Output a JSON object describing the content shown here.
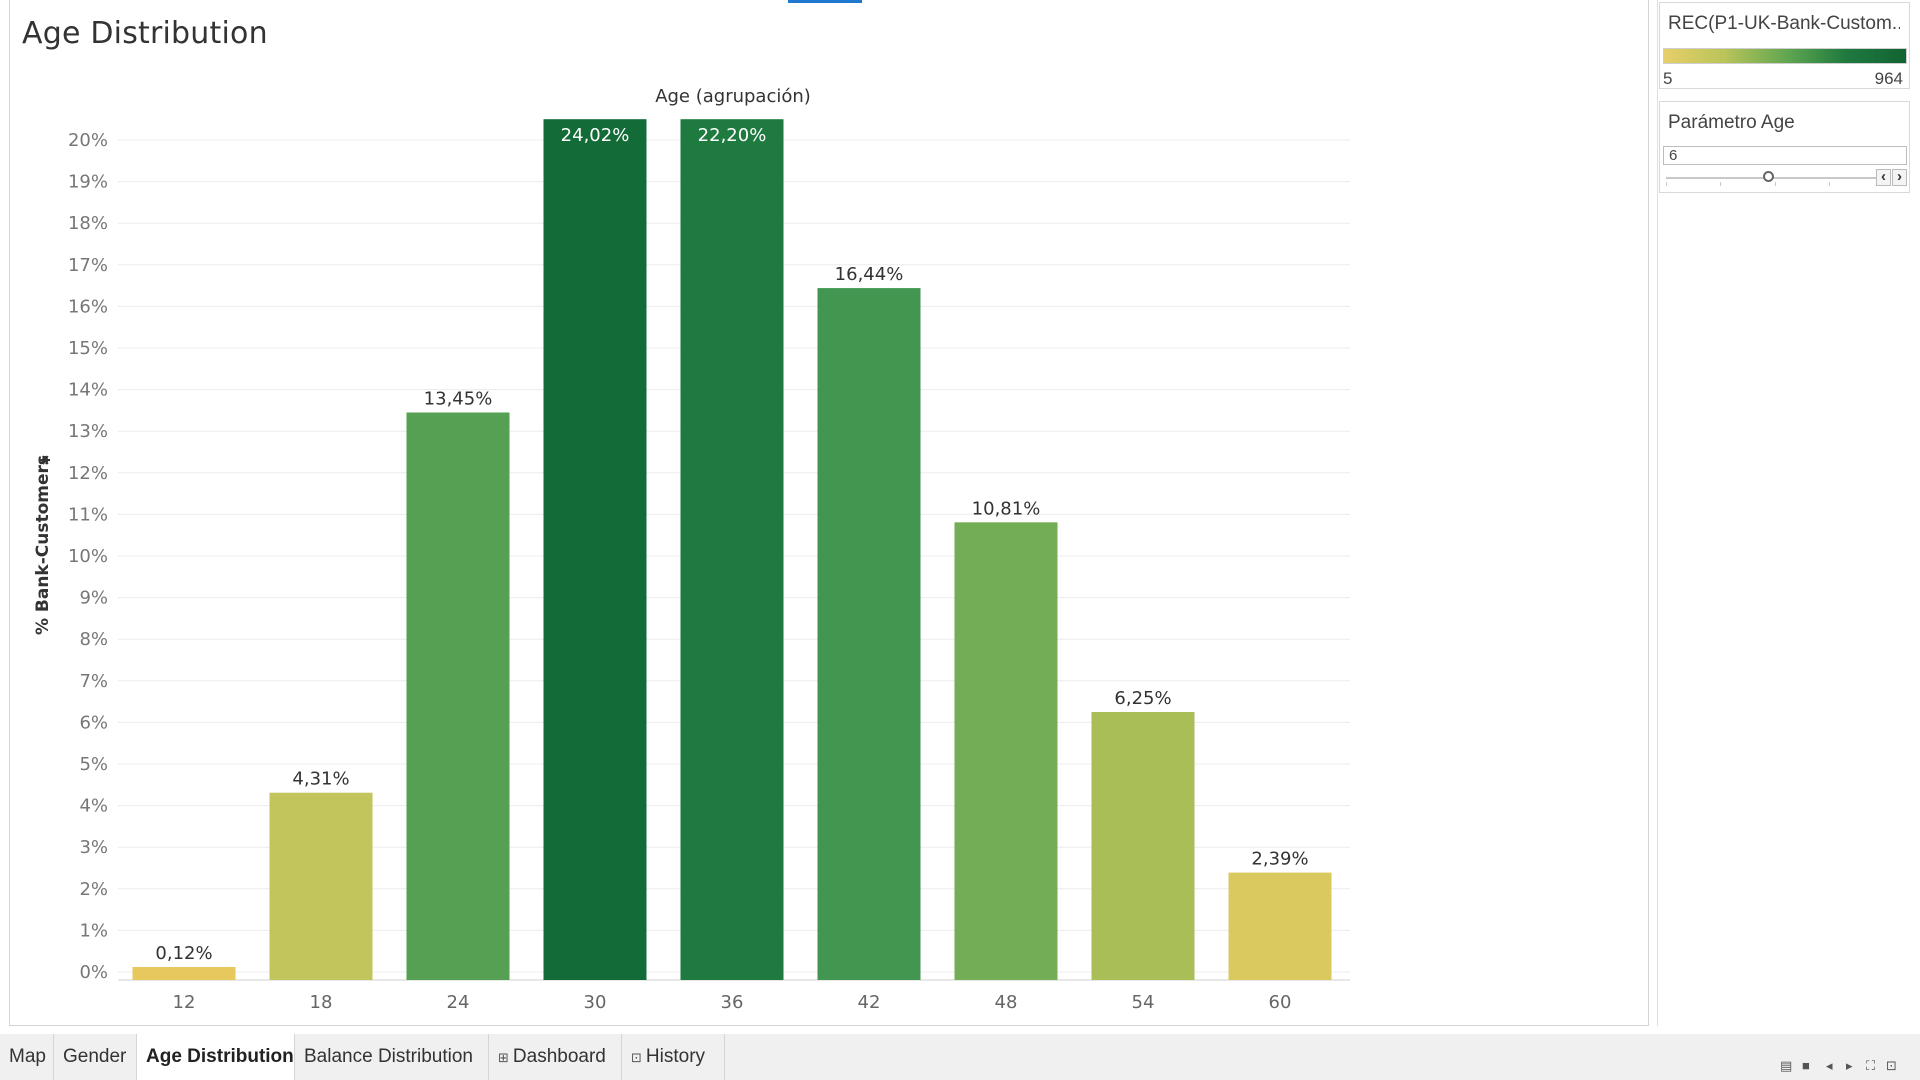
{
  "sheet": {
    "title": "Age Distribution"
  },
  "chart_data": {
    "type": "bar",
    "title": "Age (agrupación)",
    "xlabel": "Age (agrupación)",
    "ylabel": "% Bank-Customers",
    "categories": [
      "12",
      "18",
      "24",
      "30",
      "36",
      "42",
      "48",
      "54",
      "60"
    ],
    "values": [
      0.12,
      4.31,
      13.45,
      24.02,
      22.2,
      16.44,
      10.81,
      6.25,
      2.39
    ],
    "data_labels": [
      "0,12%",
      "4,31%",
      "13,45%",
      "24,02%",
      "22,20%",
      "16,44%",
      "10,81%",
      "6,25%",
      "2,39%"
    ],
    "colors": [
      "#e6c85c",
      "#c2c55c",
      "#55a052",
      "#136b38",
      "#1e7a3f",
      "#429650",
      "#73ad56",
      "#aabe58",
      "#dac95e"
    ],
    "ylim": [
      0,
      20.5
    ],
    "yticks": [
      0,
      1,
      2,
      3,
      4,
      5,
      6,
      7,
      8,
      9,
      10,
      11,
      12,
      13,
      14,
      15,
      16,
      17,
      18,
      19,
      20
    ],
    "ytick_labels": [
      "0%",
      "1%",
      "2%",
      "3%",
      "4%",
      "5%",
      "6%",
      "7%",
      "8%",
      "9%",
      "10%",
      "11%",
      "12%",
      "13%",
      "14%",
      "15%",
      "16%",
      "17%",
      "18%",
      "19%",
      "20%"
    ],
    "grid": true,
    "legend": "none"
  },
  "legend": {
    "title": "REC(P1-UK-Bank-Custom...",
    "min_label": "5",
    "max_label": "964",
    "color_low": "#e8cf6a",
    "color_high": "#126333"
  },
  "parameter": {
    "title": "Parámetro Age",
    "value": "6",
    "prev_icon": "chevron-left-icon",
    "next_icon": "chevron-right-icon"
  },
  "tabs": [
    {
      "label": "Map",
      "icon": ""
    },
    {
      "label": "Gender",
      "icon": ""
    },
    {
      "label": "Age Distribution",
      "icon": "",
      "active": true
    },
    {
      "label": "Balance Distribution",
      "icon": ""
    },
    {
      "label": "Dashboard",
      "icon": "⊞"
    },
    {
      "label": "History",
      "icon": "⊡"
    }
  ],
  "nav_icons": [
    "show-sheets-icon",
    "filmstrip-icon",
    "prev-sheet-icon",
    "next-sheet-icon",
    "fullscreen-icon",
    "present-icon"
  ]
}
